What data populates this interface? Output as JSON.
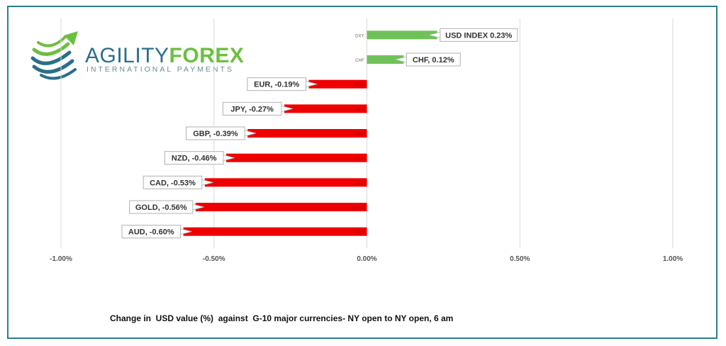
{
  "brand": {
    "name_part1": "AGILITY",
    "name_part2": "FOREX",
    "tagline": "INTERNATIONAL PAYMENTS"
  },
  "caption": "Change in  USD value (%)  against  G-10 major currencies- NY open to NY open, 6 am",
  "colors": {
    "positive": "#70c159",
    "negative": "#ee0000",
    "frame": "#2a7f8f"
  },
  "chart_data": {
    "type": "bar",
    "orientation": "horizontal",
    "xlim": [
      -1.0,
      1.0
    ],
    "x_ticks": [
      {
        "value": -1.0,
        "label": "-1.00%"
      },
      {
        "value": -0.5,
        "label": "-0.50%"
      },
      {
        "value": 0.0,
        "label": "0.00%"
      },
      {
        "value": 0.5,
        "label": "0.50%"
      },
      {
        "value": 1.0,
        "label": "1.00%"
      }
    ],
    "grid": "vertical",
    "bars": [
      {
        "category": "DXY",
        "value": 0.23,
        "label": "USD INDEX 0.23%"
      },
      {
        "category": "CHF",
        "value": 0.12,
        "label": "CHF, 0.12%"
      },
      {
        "category": "EUR",
        "value": -0.19,
        "label": "EUR, -0.19%"
      },
      {
        "category": "JPY",
        "value": -0.27,
        "label": "JPY, -0.27%"
      },
      {
        "category": "GBP",
        "value": -0.39,
        "label": "GBP, -0.39%"
      },
      {
        "category": "NZD",
        "value": -0.46,
        "label": "NZD, -0.46%"
      },
      {
        "category": "CAD",
        "value": -0.53,
        "label": "CAD, -0.53%"
      },
      {
        "category": "GOLD",
        "value": -0.56,
        "label": "GOLD, -0.56%"
      },
      {
        "category": "AUD",
        "value": -0.6,
        "label": "AUD, -0.60%"
      }
    ]
  }
}
